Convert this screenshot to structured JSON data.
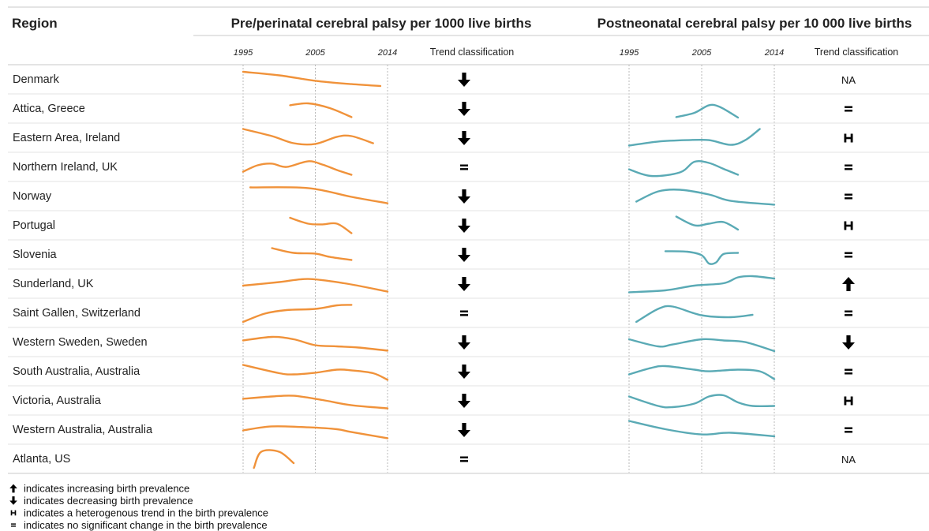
{
  "chart_data": {
    "type": "line",
    "header": {
      "region": "Region",
      "panel_left": "Pre/perinatal cerebral palsy per 1000 live births",
      "panel_right": "Postneonatal cerebral palsy per 10 000 live births",
      "trend_column": "Trend classification"
    },
    "x_ticks": [
      "1995",
      "2005",
      "2014"
    ],
    "xlim": [
      1995,
      2015
    ],
    "colors": {
      "pre": "#f0923a",
      "post": "#5aaab5"
    },
    "regions": [
      {
        "name": "Denmark",
        "pre": [
          [
            1995,
            0.8
          ],
          [
            2000,
            0.65
          ],
          [
            2005,
            0.42
          ],
          [
            2010,
            0.28
          ],
          [
            2014,
            0.2
          ]
        ],
        "pre_trend": "down",
        "post": [],
        "post_trend": "NA"
      },
      {
        "name": "Attica, Greece",
        "pre": [
          [
            2001.5,
            0.62
          ],
          [
            2004,
            0.7
          ],
          [
            2007,
            0.5
          ],
          [
            2010,
            0.12
          ]
        ],
        "pre_trend": "down",
        "post": [
          [
            2001.5,
            0.12
          ],
          [
            2004,
            0.3
          ],
          [
            2006,
            0.62
          ],
          [
            2007.5,
            0.55
          ],
          [
            2010,
            0.1
          ]
        ],
        "post_trend": "equal"
      },
      {
        "name": "Eastern Area, Ireland",
        "pre": [
          [
            1995,
            0.85
          ],
          [
            1999,
            0.55
          ],
          [
            2002,
            0.25
          ],
          [
            2005,
            0.22
          ],
          [
            2008,
            0.52
          ],
          [
            2010,
            0.55
          ],
          [
            2013,
            0.25
          ]
        ],
        "pre_trend": "down",
        "post": [
          [
            1995,
            0.15
          ],
          [
            1999,
            0.32
          ],
          [
            2003,
            0.38
          ],
          [
            2006,
            0.38
          ],
          [
            2009,
            0.18
          ],
          [
            2011,
            0.38
          ],
          [
            2013,
            0.85
          ]
        ],
        "post_trend": "heterogeneous"
      },
      {
        "name": "Northern Ireland, UK",
        "pre": [
          [
            1995,
            0.28
          ],
          [
            1997,
            0.55
          ],
          [
            1999,
            0.62
          ],
          [
            2001,
            0.48
          ],
          [
            2004,
            0.72
          ],
          [
            2006,
            0.58
          ],
          [
            2008,
            0.35
          ],
          [
            2010,
            0.15
          ]
        ],
        "pre_trend": "equal",
        "post": [
          [
            1995,
            0.38
          ],
          [
            1998,
            0.1
          ],
          [
            2002,
            0.25
          ],
          [
            2004,
            0.7
          ],
          [
            2006,
            0.65
          ],
          [
            2008,
            0.4
          ],
          [
            2010,
            0.15
          ]
        ],
        "post_trend": "equal"
      },
      {
        "name": "Norway",
        "pre": [
          [
            1996,
            0.85
          ],
          [
            2004,
            0.82
          ],
          [
            2010,
            0.45
          ],
          [
            2015,
            0.18
          ]
        ],
        "pre_trend": "down",
        "post": [
          [
            1996,
            0.25
          ],
          [
            1999,
            0.68
          ],
          [
            2002,
            0.75
          ],
          [
            2006,
            0.55
          ],
          [
            2009,
            0.28
          ],
          [
            2015,
            0.12
          ]
        ],
        "post_trend": "equal"
      },
      {
        "name": "Portugal",
        "pre": [
          [
            2001.5,
            0.8
          ],
          [
            2004,
            0.55
          ],
          [
            2006,
            0.52
          ],
          [
            2008,
            0.55
          ],
          [
            2010,
            0.15
          ]
        ],
        "pre_trend": "down",
        "post": [
          [
            2001.5,
            0.85
          ],
          [
            2004,
            0.48
          ],
          [
            2006,
            0.55
          ],
          [
            2008,
            0.62
          ],
          [
            2010,
            0.3
          ]
        ],
        "post_trend": "heterogeneous"
      },
      {
        "name": "Slovenia",
        "pre": [
          [
            1999,
            0.75
          ],
          [
            2002,
            0.55
          ],
          [
            2005,
            0.52
          ],
          [
            2007,
            0.38
          ],
          [
            2010,
            0.25
          ]
        ],
        "pre_trend": "down",
        "post": [
          [
            2000,
            0.62
          ],
          [
            2003,
            0.6
          ],
          [
            2005,
            0.45
          ],
          [
            2006,
            0.1
          ],
          [
            2007,
            0.15
          ],
          [
            2008,
            0.5
          ],
          [
            2010,
            0.55
          ]
        ],
        "post_trend": "equal"
      },
      {
        "name": "Sunderland, UK",
        "pre": [
          [
            1995,
            0.4
          ],
          [
            2000,
            0.55
          ],
          [
            2004,
            0.68
          ],
          [
            2009,
            0.5
          ],
          [
            2015,
            0.15
          ]
        ],
        "pre_trend": "down",
        "post": [
          [
            1995,
            0.12
          ],
          [
            2000,
            0.2
          ],
          [
            2004,
            0.4
          ],
          [
            2008,
            0.5
          ],
          [
            2010,
            0.75
          ],
          [
            2012,
            0.8
          ],
          [
            2015,
            0.7
          ]
        ],
        "post_trend": "up"
      },
      {
        "name": "Saint Gallen, Switzerland",
        "pre": [
          [
            1995,
            0.1
          ],
          [
            1998,
            0.45
          ],
          [
            2001,
            0.6
          ],
          [
            2005,
            0.65
          ],
          [
            2008,
            0.8
          ],
          [
            2010,
            0.82
          ]
        ],
        "pre_trend": "equal",
        "post": [
          [
            1996,
            0.1
          ],
          [
            1999,
            0.65
          ],
          [
            2001,
            0.75
          ],
          [
            2005,
            0.38
          ],
          [
            2009,
            0.3
          ],
          [
            2012,
            0.4
          ]
        ],
        "post_trend": "equal"
      },
      {
        "name": "Western Sweden, Sweden",
        "pre": [
          [
            1995,
            0.55
          ],
          [
            1999,
            0.7
          ],
          [
            2002,
            0.6
          ],
          [
            2005,
            0.35
          ],
          [
            2008,
            0.3
          ],
          [
            2011,
            0.25
          ],
          [
            2015,
            0.12
          ]
        ],
        "pre_trend": "down",
        "post": [
          [
            1995,
            0.6
          ],
          [
            1999,
            0.3
          ],
          [
            2001,
            0.38
          ],
          [
            2005,
            0.6
          ],
          [
            2008,
            0.55
          ],
          [
            2011,
            0.48
          ],
          [
            2015,
            0.1
          ]
        ],
        "post_trend": "down"
      },
      {
        "name": "South Australia, Australia",
        "pre": [
          [
            1995,
            0.75
          ],
          [
            2000,
            0.4
          ],
          [
            2002,
            0.35
          ],
          [
            2005,
            0.42
          ],
          [
            2008,
            0.55
          ],
          [
            2010,
            0.52
          ],
          [
            2013,
            0.4
          ],
          [
            2015,
            0.12
          ]
        ],
        "pre_trend": "down",
        "post": [
          [
            1995,
            0.35
          ],
          [
            1998,
            0.62
          ],
          [
            2000,
            0.7
          ],
          [
            2004,
            0.55
          ],
          [
            2006,
            0.48
          ],
          [
            2010,
            0.55
          ],
          [
            2013,
            0.48
          ],
          [
            2015,
            0.15
          ]
        ],
        "post_trend": "equal"
      },
      {
        "name": "Victoria, Australia",
        "pre": [
          [
            1995,
            0.55
          ],
          [
            1999,
            0.65
          ],
          [
            2002,
            0.68
          ],
          [
            2006,
            0.5
          ],
          [
            2010,
            0.28
          ],
          [
            2015,
            0.15
          ]
        ],
        "pre_trend": "down",
        "post": [
          [
            1995,
            0.65
          ],
          [
            1999,
            0.25
          ],
          [
            2001,
            0.2
          ],
          [
            2004,
            0.35
          ],
          [
            2006,
            0.65
          ],
          [
            2008,
            0.7
          ],
          [
            2010,
            0.4
          ],
          [
            2012,
            0.25
          ],
          [
            2015,
            0.25
          ]
        ],
        "post_trend": "heterogeneous"
      },
      {
        "name": "Western Australia, Australia",
        "pre": [
          [
            1995,
            0.45
          ],
          [
            1999,
            0.62
          ],
          [
            2004,
            0.58
          ],
          [
            2008,
            0.5
          ],
          [
            2010,
            0.38
          ],
          [
            2015,
            0.12
          ]
        ],
        "pre_trend": "down",
        "post": [
          [
            1995,
            0.85
          ],
          [
            2000,
            0.5
          ],
          [
            2005,
            0.28
          ],
          [
            2009,
            0.35
          ],
          [
            2015,
            0.2
          ]
        ],
        "post_trend": "equal"
      },
      {
        "name": "Atlanta, US",
        "pre": [
          [
            1996.5,
            0.1
          ],
          [
            1997.5,
            0.78
          ],
          [
            2000,
            0.78
          ],
          [
            2002,
            0.3
          ]
        ],
        "pre_trend": "equal",
        "post": [],
        "post_trend": "NA"
      }
    ],
    "legend": [
      {
        "symbol": "up",
        "label": "indicates increasing birth prevalence"
      },
      {
        "symbol": "down",
        "label": "indicates decreasing birth prevalence"
      },
      {
        "symbol": "heterogeneous",
        "label": "indicates a heterogenous trend in the birth prevalence"
      },
      {
        "symbol": "equal",
        "label": "indicates no significant change in the birth prevalence"
      }
    ],
    "grid": true
  }
}
